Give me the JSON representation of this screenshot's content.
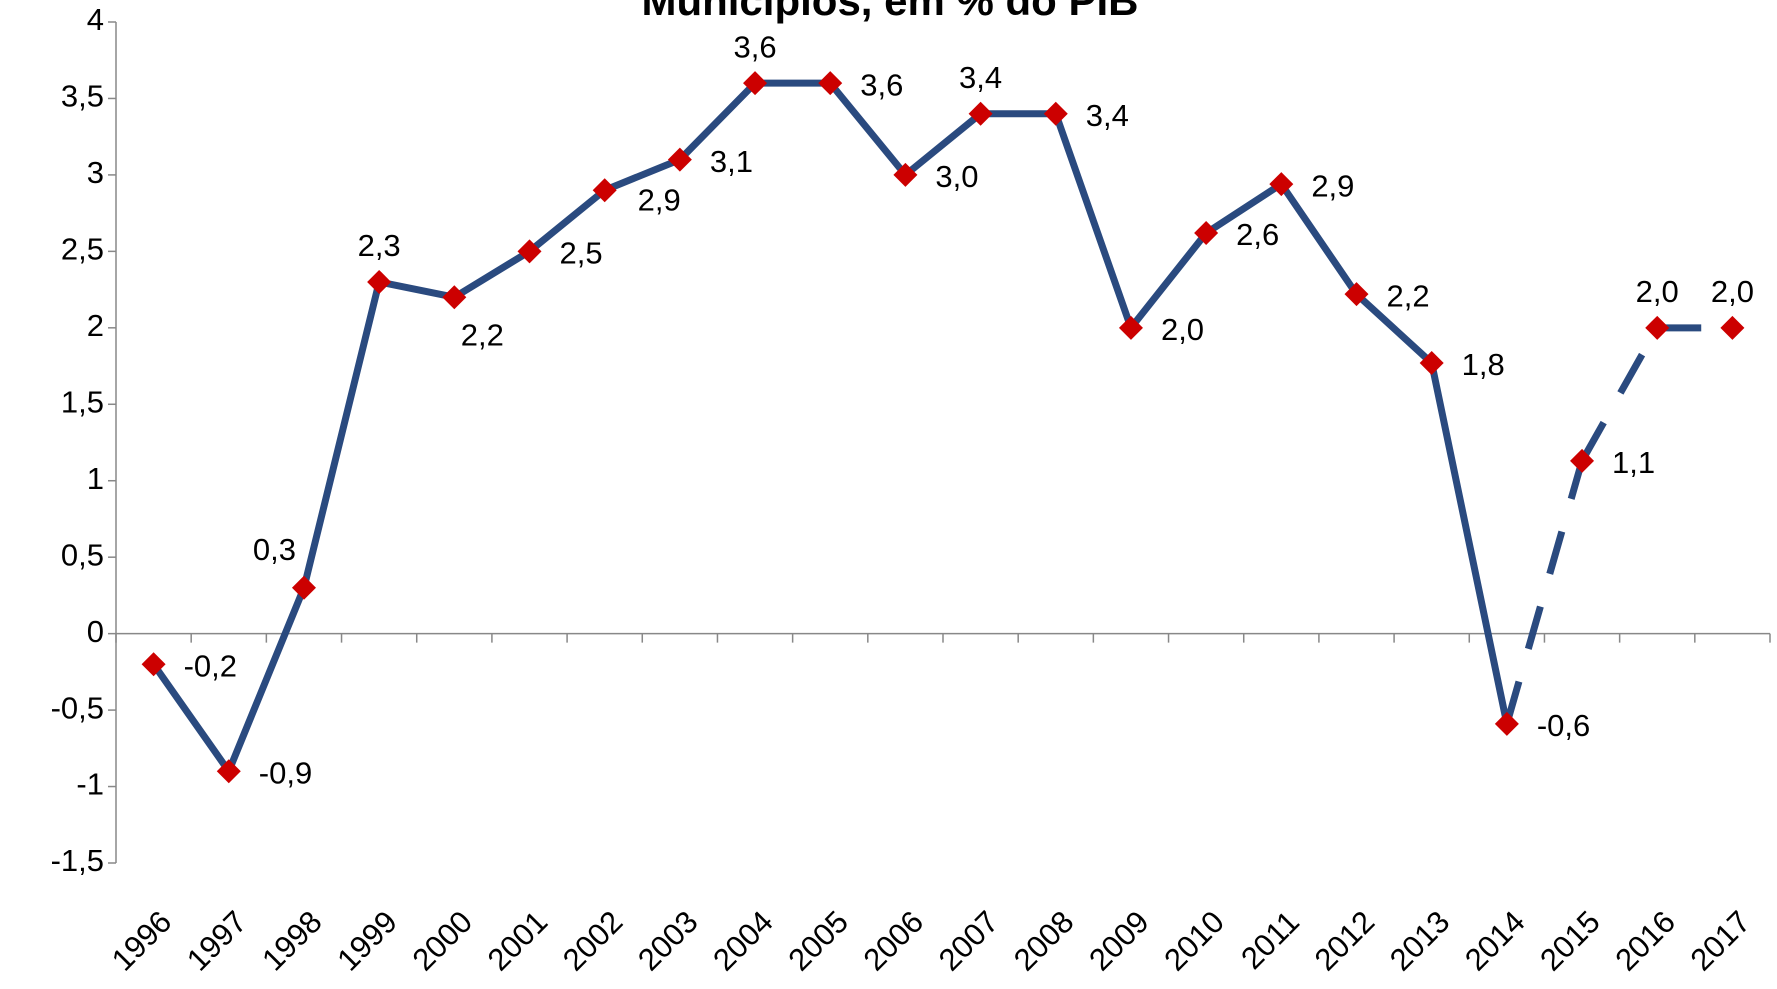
{
  "chart_data": {
    "type": "line",
    "title": "Municípios, em % do PIB",
    "categories": [
      "1996",
      "1997",
      "1998",
      "1999",
      "2000",
      "2001",
      "2002",
      "2003",
      "2004",
      "2005",
      "2006",
      "2007",
      "2008",
      "2009",
      "2010",
      "2011",
      "2012",
      "2013",
      "2014",
      "2015",
      "2016",
      "2017"
    ],
    "values": [
      -0.2,
      -0.9,
      0.3,
      2.3,
      2.2,
      2.5,
      2.9,
      3.1,
      3.6,
      3.6,
      3.0,
      3.4,
      3.4,
      2.0,
      2.62,
      2.94,
      2.22,
      1.77,
      -0.59,
      1.13,
      2.0,
      2.0
    ],
    "value_labels": [
      "-0,2",
      "-0,9",
      "0,3",
      "2,3",
      "2,2",
      "2,5",
      "2,9",
      "3,1",
      "3,6",
      "3,6",
      "3,0",
      "3,4",
      "3,4",
      "2,0",
      "2,6",
      "2,9",
      "2,2",
      "1,8",
      "-0,6",
      "1,1",
      "2,0",
      "2,0"
    ],
    "label_positions": [
      "right",
      "right",
      "above-left",
      "above",
      "below",
      "right",
      "below-right",
      "right",
      "above",
      "right",
      "right",
      "above",
      "right",
      "right",
      "right",
      "right",
      "right",
      "right",
      "right",
      "right",
      "above",
      "above"
    ],
    "segment_styles": [
      "solid",
      "solid",
      "solid",
      "solid",
      "solid",
      "solid",
      "solid",
      "solid",
      "solid",
      "solid",
      "solid",
      "solid",
      "solid",
      "solid",
      "solid",
      "solid",
      "solid",
      "solid",
      "dashed",
      "dashed",
      "dashed"
    ],
    "color": "#2a4a7f",
    "marker_color": "#cc0000",
    "ylim": [
      -1.5,
      4
    ],
    "yticks": [
      {
        "value": -1.5,
        "label": "-1,5"
      },
      -1,
      {
        "value": -0.5,
        "label": "-0,5"
      },
      0,
      {
        "value": 0.5,
        "label": "0,5"
      },
      1,
      {
        "value": 1.5,
        "label": "1,5"
      },
      2,
      {
        "value": 2.5,
        "label": "2,5"
      },
      3,
      {
        "value": 3.5,
        "label": "3,5"
      },
      4
    ],
    "grid": false
  }
}
